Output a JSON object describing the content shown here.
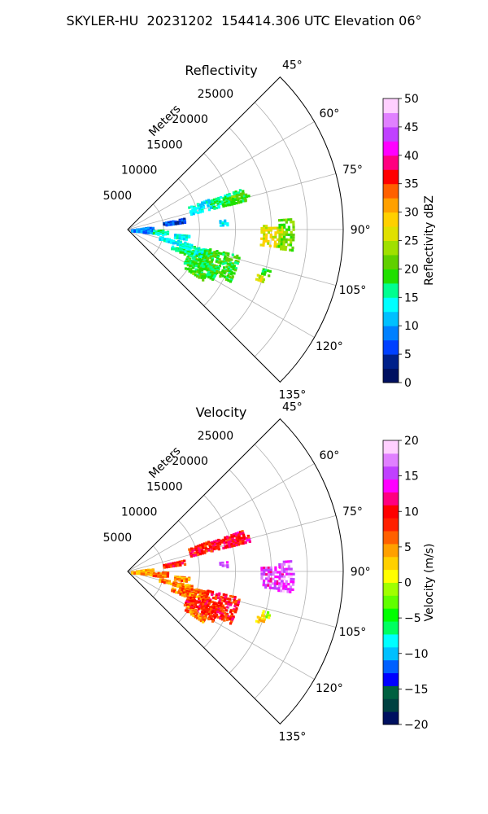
{
  "figure_title": "SKYLER-HU  20231202  154414.306 UTC Elevation 06°",
  "chart_data": [
    {
      "type": "polar-sector",
      "title": "Reflectivity",
      "radial_label": "Meters",
      "radial_ticks": [
        "5000",
        "10000",
        "15000",
        "20000",
        "25000"
      ],
      "radial_tick_values": [
        5000,
        10000,
        15000,
        20000,
        25000
      ],
      "rlim": [
        0,
        30000
      ],
      "theta_ticks": [
        "45°",
        "60°",
        "75°",
        "90°",
        "105°",
        "120°",
        "135°"
      ],
      "theta_tick_values": [
        45,
        60,
        75,
        90,
        105,
        120,
        135
      ],
      "theta_range_deg": [
        45,
        135
      ],
      "grid": true,
      "colorbar": {
        "label": "Reflectivity dBZ",
        "min": 0,
        "max": 50,
        "ticks": [
          "0",
          "5",
          "10",
          "15",
          "20",
          "25",
          "30",
          "35",
          "40",
          "45",
          "50"
        ],
        "colors": [
          "#001060",
          "#00208a",
          "#0040ff",
          "#0080ff",
          "#00c0ff",
          "#00ffff",
          "#00ff90",
          "#20e000",
          "#60d000",
          "#a0e000",
          "#e0e000",
          "#ffd000",
          "#ffa000",
          "#ff6000",
          "#ff0000",
          "#ff0080",
          "#ff00ff",
          "#c040ff",
          "#e080ff",
          "#ffd0ff"
        ]
      },
      "echoes": [
        {
          "az": [
            70,
            76
          ],
          "r": [
            12000,
            17000
          ],
          "value": 17
        },
        {
          "az": [
            72,
            76
          ],
          "r": [
            14500,
            17500
          ],
          "value": 20
        },
        {
          "az": [
            69,
            76
          ],
          "r": [
            9000,
            12000
          ],
          "value": 13
        },
        {
          "az": [
            78,
            82
          ],
          "r": [
            5000,
            8000
          ],
          "value": 6
        },
        {
          "az": [
            84,
            87
          ],
          "r": [
            12800,
            13800
          ],
          "value": 14
        },
        {
          "az": [
            82,
            97
          ],
          "r": [
            500,
            3500
          ],
          "value": 9
        },
        {
          "az": [
            90,
            98
          ],
          "r": [
            3500,
            5500
          ],
          "value": 16
        },
        {
          "az": [
            95,
            99
          ],
          "r": [
            6500,
            8500
          ],
          "value": 14
        },
        {
          "az": [
            102,
            106
          ],
          "r": [
            4500,
            9000
          ],
          "value": 13
        },
        {
          "az": [
            104,
            111
          ],
          "r": [
            7500,
            11500
          ],
          "value": 15
        },
        {
          "az": [
            110,
            113
          ],
          "r": [
            6500,
            10000
          ],
          "value": 17
        },
        {
          "az": [
            103,
            117
          ],
          "r": [
            11000,
            16000
          ],
          "value": 19
        },
        {
          "az": [
            112,
            121
          ],
          "r": [
            9000,
            13500
          ],
          "value": 18
        },
        {
          "az": [
            120,
            124
          ],
          "r": [
            9500,
            12500
          ],
          "value": 20
        },
        {
          "az": [
            88,
            97
          ],
          "r": [
            18500,
            21500
          ],
          "value": 27
        },
        {
          "az": [
            86,
            97
          ],
          "r": [
            21000,
            23200
          ],
          "value": 22
        },
        {
          "az": [
            106,
            108
          ],
          "r": [
            19500,
            20500
          ],
          "value": 18
        },
        {
          "az": [
            109,
            111
          ],
          "r": [
            19000,
            20000
          ],
          "value": 26
        }
      ]
    },
    {
      "type": "polar-sector",
      "title": "Velocity",
      "radial_label": "Meters",
      "radial_ticks": [
        "5000",
        "10000",
        "15000",
        "20000",
        "25000"
      ],
      "radial_tick_values": [
        5000,
        10000,
        15000,
        20000,
        25000
      ],
      "rlim": [
        0,
        30000
      ],
      "theta_ticks": [
        "45°",
        "60°",
        "75°",
        "90°",
        "105°",
        "120°",
        "135°"
      ],
      "theta_tick_values": [
        45,
        60,
        75,
        90,
        105,
        120,
        135
      ],
      "theta_range_deg": [
        45,
        135
      ],
      "grid": true,
      "colorbar": {
        "label": "Velocity (m/s)",
        "min": -20,
        "max": 20,
        "ticks": [
          "−20",
          "−15",
          "−10",
          "−5",
          "0",
          "5",
          "10",
          "15",
          "20"
        ],
        "colors": [
          "#001060",
          "#004040",
          "#006040",
          "#0000ff",
          "#0060ff",
          "#00c0ff",
          "#00ffff",
          "#00ff60",
          "#00ff00",
          "#60ff00",
          "#a0ff00",
          "#ffff00",
          "#ffd000",
          "#ffa000",
          "#ff6000",
          "#ff2000",
          "#ff0000",
          "#ff0080",
          "#ff00ff",
          "#c040ff",
          "#e080ff",
          "#ffd0ff"
        ]
      },
      "echoes": [
        {
          "az": [
            70,
            76
          ],
          "r": [
            12000,
            17000
          ],
          "value": 10
        },
        {
          "az": [
            72,
            76
          ],
          "r": [
            14500,
            17500
          ],
          "value": 10
        },
        {
          "az": [
            69,
            76
          ],
          "r": [
            9000,
            12000
          ],
          "value": 9
        },
        {
          "az": [
            78,
            82
          ],
          "r": [
            5000,
            8000
          ],
          "value": 9
        },
        {
          "az": [
            84,
            87
          ],
          "r": [
            12800,
            13800
          ],
          "value": 16
        },
        {
          "az": [
            82,
            97
          ],
          "r": [
            500,
            3500
          ],
          "value": 4
        },
        {
          "az": [
            90,
            98
          ],
          "r": [
            3500,
            5500
          ],
          "value": 6
        },
        {
          "az": [
            95,
            99
          ],
          "r": [
            6500,
            8500
          ],
          "value": 5
        },
        {
          "az": [
            102,
            106
          ],
          "r": [
            4500,
            9000
          ],
          "value": 5
        },
        {
          "az": [
            104,
            111
          ],
          "r": [
            7500,
            11500
          ],
          "value": 6
        },
        {
          "az": [
            110,
            113
          ],
          "r": [
            6500,
            10000
          ],
          "value": 6
        },
        {
          "az": [
            103,
            117
          ],
          "r": [
            11000,
            16000
          ],
          "value": 9
        },
        {
          "az": [
            112,
            121
          ],
          "r": [
            9000,
            13500
          ],
          "value": 9
        },
        {
          "az": [
            120,
            124
          ],
          "r": [
            9500,
            12500
          ],
          "value": 6
        },
        {
          "az": [
            88,
            97
          ],
          "r": [
            18500,
            21500
          ],
          "value": 15
        },
        {
          "az": [
            86,
            97
          ],
          "r": [
            21000,
            23200
          ],
          "value": 16
        },
        {
          "az": [
            106,
            108
          ],
          "r": [
            19500,
            20500
          ],
          "value": 0
        },
        {
          "az": [
            109,
            111
          ],
          "r": [
            19000,
            20000
          ],
          "value": 2
        }
      ]
    }
  ]
}
